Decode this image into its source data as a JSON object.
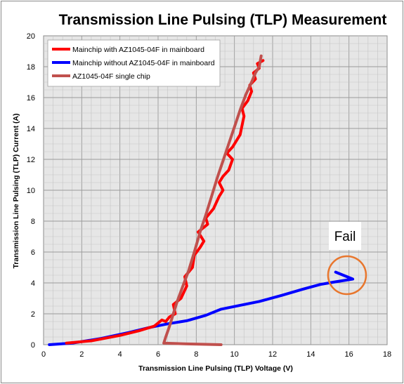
{
  "chart_data": {
    "type": "line",
    "title": "Transmission Line Pulsing (TLP) Measurement",
    "xlabel": "Transmission Line Pulsing (TLP) Voltage (V)",
    "ylabel": "Transmission Line Pulsing (TLP) Current (A)",
    "xlim": [
      0,
      18
    ],
    "ylim": [
      0,
      20
    ],
    "x_ticks": [
      "0",
      "2",
      "4",
      "6",
      "8",
      "10",
      "12",
      "14",
      "16",
      "18"
    ],
    "y_ticks": [
      "0",
      "2",
      "4",
      "6",
      "8",
      "10",
      "12",
      "14",
      "16",
      "18",
      "20"
    ],
    "grid": true,
    "legend_position": "top-left",
    "series": [
      {
        "name": "Mainchip with AZ1045-04F in mainboard",
        "color": "#ff0000",
        "points": [
          [
            1.2,
            0.1
          ],
          [
            2.5,
            0.25
          ],
          [
            4.0,
            0.6
          ],
          [
            5.0,
            0.9
          ],
          [
            5.8,
            1.2
          ],
          [
            6.0,
            1.4
          ],
          [
            6.2,
            1.6
          ],
          [
            6.4,
            1.5
          ],
          [
            6.6,
            1.8
          ],
          [
            6.9,
            2.0
          ],
          [
            6.8,
            2.6
          ],
          [
            7.2,
            3.0
          ],
          [
            7.5,
            3.8
          ],
          [
            7.4,
            4.4
          ],
          [
            7.8,
            5.0
          ],
          [
            7.9,
            5.8
          ],
          [
            8.2,
            6.3
          ],
          [
            8.4,
            6.7
          ],
          [
            8.1,
            7.3
          ],
          [
            8.6,
            7.8
          ],
          [
            8.5,
            8.2
          ],
          [
            8.9,
            8.8
          ],
          [
            9.2,
            9.6
          ],
          [
            9.4,
            10.0
          ],
          [
            9.2,
            10.5
          ],
          [
            9.4,
            10.9
          ],
          [
            9.7,
            11.3
          ],
          [
            9.9,
            12.0
          ],
          [
            9.6,
            12.4
          ],
          [
            9.9,
            12.8
          ],
          [
            10.3,
            13.6
          ],
          [
            10.4,
            14.2
          ],
          [
            10.5,
            14.8
          ],
          [
            10.4,
            15.3
          ],
          [
            10.7,
            15.8
          ],
          [
            10.9,
            16.4
          ],
          [
            10.8,
            16.8
          ],
          [
            11.1,
            17.2
          ],
          [
            11.0,
            17.6
          ],
          [
            11.3,
            17.9
          ],
          [
            11.2,
            18.2
          ],
          [
            11.5,
            18.4
          ]
        ]
      },
      {
        "name": "Mainchip without AZ1045-04F in mainboard",
        "color": "#0000ff",
        "points": [
          [
            0.3,
            0.0
          ],
          [
            1.5,
            0.1
          ],
          [
            3.0,
            0.4
          ],
          [
            4.5,
            0.8
          ],
          [
            5.5,
            1.1
          ],
          [
            6.5,
            1.35
          ],
          [
            7.5,
            1.55
          ],
          [
            8.5,
            1.9
          ],
          [
            9.3,
            2.3
          ],
          [
            10.5,
            2.6
          ],
          [
            11.3,
            2.8
          ],
          [
            12.5,
            3.2
          ],
          [
            13.6,
            3.6
          ],
          [
            14.5,
            3.9
          ],
          [
            15.2,
            4.05
          ],
          [
            16.2,
            4.25
          ],
          [
            15.3,
            4.7
          ]
        ]
      },
      {
        "name": "AZ1045-04F single chip",
        "color": "#c0504d",
        "points": [
          [
            9.3,
            0.0
          ],
          [
            7.5,
            0.05
          ],
          [
            6.3,
            0.1
          ],
          [
            6.4,
            0.5
          ],
          [
            6.6,
            1.2
          ],
          [
            6.8,
            2.0
          ],
          [
            7.0,
            2.8
          ],
          [
            7.3,
            3.8
          ],
          [
            7.6,
            4.8
          ],
          [
            7.9,
            6.0
          ],
          [
            8.2,
            7.3
          ],
          [
            8.5,
            8.4
          ],
          [
            8.8,
            9.6
          ],
          [
            9.1,
            10.8
          ],
          [
            9.4,
            11.9
          ],
          [
            9.7,
            13.0
          ],
          [
            10.0,
            14.1
          ],
          [
            10.3,
            15.2
          ],
          [
            10.6,
            16.2
          ],
          [
            10.9,
            17.0
          ],
          [
            11.1,
            17.6
          ],
          [
            11.3,
            18.0
          ],
          [
            11.4,
            18.7
          ]
        ]
      }
    ],
    "annotation": {
      "text": "Fail",
      "circle_center": [
        15.9,
        4.5
      ],
      "circle_color": "#e8762d"
    }
  }
}
